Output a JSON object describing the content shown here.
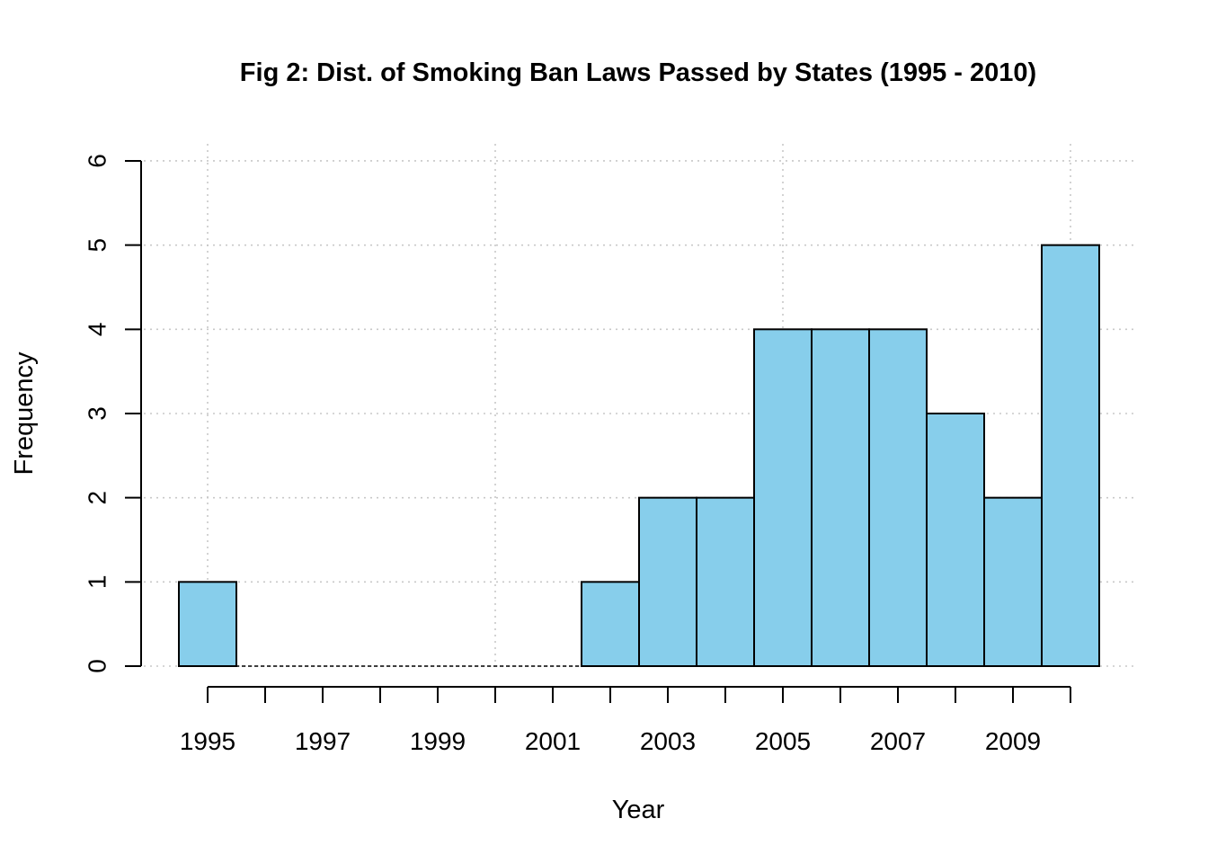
{
  "chart_data": {
    "type": "bar",
    "title": "Fig 2: Dist. of Smoking Ban Laws Passed by States (1995 - 2010)",
    "xlabel": "Year",
    "ylabel": "Frequency",
    "categories": [
      "1995",
      "1996",
      "1997",
      "1998",
      "1999",
      "2000",
      "2001",
      "2002",
      "2003",
      "2004",
      "2005",
      "2006",
      "2007",
      "2008",
      "2009",
      "2010"
    ],
    "values": [
      1,
      0,
      0,
      0,
      0,
      0,
      0,
      1,
      2,
      2,
      4,
      4,
      4,
      3,
      2,
      5
    ],
    "x_ticks": [
      1995,
      1996,
      1997,
      1998,
      1999,
      2000,
      2001,
      2002,
      2003,
      2004,
      2005,
      2006,
      2007,
      2008,
      2009,
      2010
    ],
    "x_tick_labels": [
      "1995",
      "1997",
      "1999",
      "2001",
      "2003",
      "2005",
      "2007",
      "2009"
    ],
    "y_ticks": [
      "0",
      "1",
      "2",
      "3",
      "4",
      "5",
      "6"
    ],
    "ylim": [
      0,
      6
    ],
    "grid": true,
    "bar_color": "#87ceeb",
    "grid_color": "#c8c8c8"
  }
}
